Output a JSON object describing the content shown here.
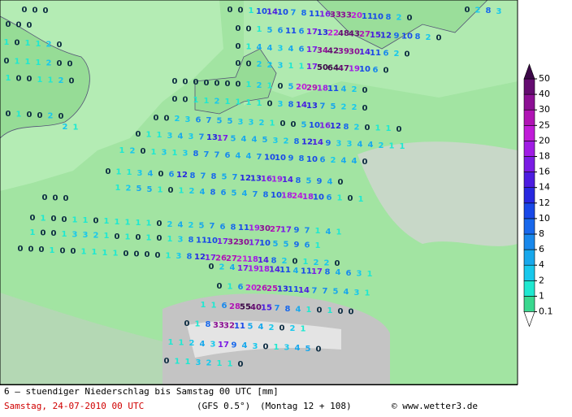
{
  "map": {
    "rows": [
      [
        0,
        0,
        0
      ],
      [
        0,
        0,
        1,
        10,
        14,
        10,
        7,
        8,
        11,
        16,
        33,
        33,
        20,
        11,
        10,
        8,
        2,
        0
      ],
      [
        0,
        2,
        8,
        3
      ],
      [
        0,
        0,
        0
      ],
      [
        0,
        0,
        1,
        5,
        6,
        11,
        6,
        17,
        13,
        22,
        48,
        43,
        27,
        15,
        12,
        9,
        10,
        8,
        2,
        0
      ],
      [
        1,
        0,
        1,
        1,
        2,
        0
      ],
      [
        0,
        1,
        4,
        4,
        3,
        4,
        6,
        17,
        34,
        42,
        39,
        30,
        14,
        11,
        6,
        2,
        0
      ],
      [
        0,
        1,
        1,
        1,
        2,
        0,
        0
      ],
      [
        0,
        0,
        2,
        2,
        3,
        1,
        1,
        17,
        50,
        64,
        47,
        19,
        10,
        6,
        0
      ],
      [
        1,
        0,
        0,
        1,
        1,
        2,
        0
      ],
      [
        0,
        0,
        0,
        0,
        0,
        0,
        0,
        1,
        2,
        1,
        0,
        5,
        20,
        29,
        18,
        11,
        4,
        2,
        0
      ],
      [
        0,
        1,
        0,
        0,
        2,
        0
      ],
      [
        0,
        0,
        1,
        1,
        2,
        1,
        1,
        1,
        1,
        0,
        3,
        8,
        14,
        13,
        7,
        5,
        2,
        2,
        0
      ],
      [
        2,
        1
      ],
      [
        0,
        0,
        2,
        3,
        6,
        7,
        5,
        5,
        3,
        3,
        2,
        1,
        0,
        0,
        5,
        10,
        16,
        12,
        8,
        2,
        0,
        1,
        1,
        0
      ],
      [
        0,
        1,
        1,
        3,
        4,
        3,
        7,
        13,
        17,
        5,
        4,
        4,
        5,
        3,
        2,
        8,
        12,
        14,
        9,
        3,
        3,
        4,
        4,
        2,
        1,
        1
      ],
      [
        1,
        2,
        0,
        1,
        3,
        1,
        3,
        8,
        7,
        7,
        6,
        4,
        4,
        7,
        10,
        10,
        9,
        8,
        10,
        6,
        2,
        4,
        4,
        0
      ],
      [
        0,
        1,
        1,
        3,
        4,
        0,
        6,
        12,
        8,
        7,
        8,
        5,
        7,
        12,
        13,
        16,
        19,
        14,
        8,
        5,
        9,
        4,
        0
      ],
      [
        1,
        2,
        5,
        5,
        1,
        0,
        1,
        2,
        4,
        8,
        6,
        5,
        4,
        7,
        8,
        10,
        18,
        24,
        18,
        10,
        6,
        1,
        0,
        1
      ],
      [
        0,
        0,
        0
      ],
      [
        0,
        1,
        0,
        0,
        1,
        1,
        0,
        1,
        1,
        1,
        1,
        1,
        0,
        2,
        4,
        2,
        5,
        7,
        6,
        8,
        11,
        19,
        30,
        27,
        17,
        9,
        7,
        1,
        4,
        1
      ],
      [
        1,
        0,
        0,
        1,
        3,
        3,
        2,
        1,
        0,
        1,
        0,
        1,
        0,
        1,
        3,
        8,
        11,
        10,
        17,
        32,
        30,
        17,
        10,
        5,
        5,
        9,
        6,
        1
      ],
      [
        0,
        0,
        0,
        1,
        0,
        0,
        1,
        1,
        1,
        1,
        0,
        0,
        0,
        0,
        1,
        3,
        8,
        12,
        17,
        26,
        27,
        21,
        18,
        14,
        8,
        2,
        0,
        1,
        2,
        2,
        0
      ],
      [
        0,
        2,
        4,
        17,
        19,
        18,
        14,
        11,
        4,
        11,
        17,
        8,
        4,
        6,
        3,
        1
      ],
      [
        0,
        1,
        6,
        20,
        26,
        25,
        13,
        11,
        14,
        7,
        7,
        5,
        4,
        3,
        1
      ],
      [
        1,
        1,
        6,
        28,
        55,
        40,
        15,
        7,
        8,
        4,
        1,
        0,
        1,
        0,
        0
      ],
      [
        0,
        1,
        8,
        33,
        32,
        11,
        5,
        4,
        2,
        0,
        2,
        1
      ],
      [
        1,
        1,
        2,
        4,
        3,
        17,
        9,
        4,
        3,
        0,
        1,
        3,
        4,
        5,
        0
      ],
      [
        0,
        1,
        1,
        3,
        2,
        1,
        1,
        0
      ]
    ]
  },
  "legend": {
    "levels": [
      0.1,
      1,
      2,
      4,
      6,
      8,
      10,
      12,
      14,
      16,
      18,
      20,
      25,
      30,
      40,
      50
    ],
    "colors": [
      "#3ad88f",
      "#1fe8d0",
      "#18c8ec",
      "#18a8ec",
      "#1888ec",
      "#1868ec",
      "#1848e8",
      "#2828e0",
      "#4c1ce0",
      "#7a1ce4",
      "#a01ce4",
      "#c01cd8",
      "#b014b4",
      "#8c1094",
      "#640c70",
      "#3c0848"
    ]
  },
  "footer": {
    "line1": "6 — stuendiger Niederschlag bis Samstag 00 UTC [mm]",
    "date": "Samstag, 24-07-2010  00 UTC",
    "model": "(GFS 0.5°)",
    "run": "(Montag 12 + 108)",
    "credit": "© www.wetter3.de"
  }
}
